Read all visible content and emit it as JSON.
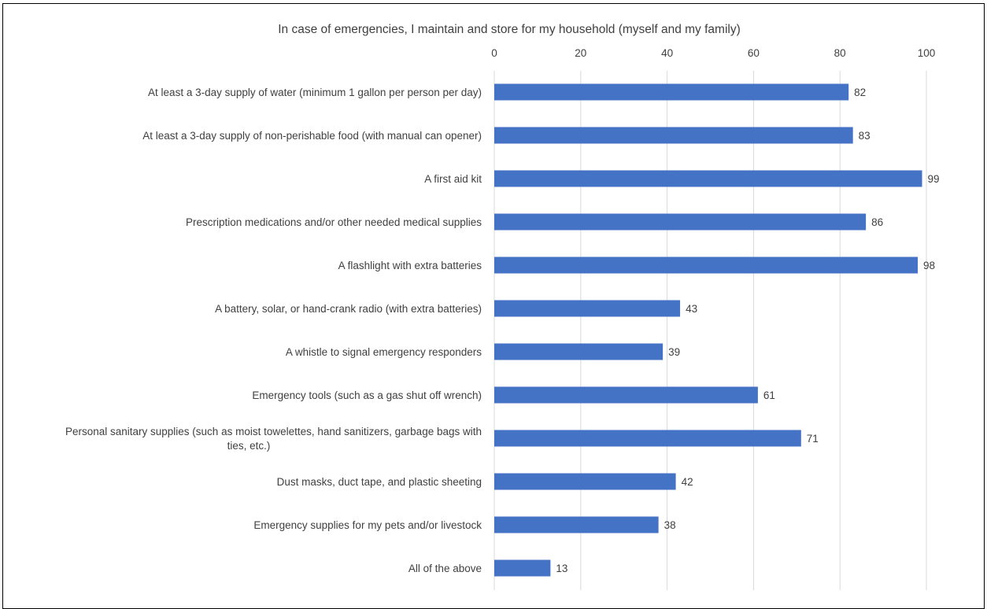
{
  "chart_data": {
    "type": "bar",
    "orientation": "horizontal",
    "title": "In case of emergencies, I maintain and store for my household (myself and my family)",
    "xlim": [
      0,
      100
    ],
    "x_ticks": [
      "0",
      "20",
      "40",
      "60",
      "80",
      "100"
    ],
    "x_axis_position": "top",
    "grid": true,
    "legend": "none",
    "bar_color": "#4472C4",
    "categories": [
      [
        "At least a 3-day supply of water (minimum 1 gallon per person per day)"
      ],
      [
        "At least a 3-day supply of non-perishable food (with manual can opener)"
      ],
      [
        "A first aid kit"
      ],
      [
        "Prescription medications and/or other needed medical supplies"
      ],
      [
        "A flashlight with extra batteries"
      ],
      [
        "A battery, solar, or hand-crank radio (with extra batteries)"
      ],
      [
        "A whistle to signal emergency responders"
      ],
      [
        "Emergency tools (such as a gas shut off wrench)"
      ],
      [
        "Personal sanitary supplies (such as moist towelettes, hand sanitizers, garbage bags with",
        "ties, etc.)"
      ],
      [
        "Dust masks, duct tape, and plastic sheeting"
      ],
      [
        "Emergency supplies for my pets and/or livestock"
      ],
      [
        "All of the above"
      ]
    ],
    "values": [
      82,
      83,
      99,
      86,
      98,
      43,
      39,
      61,
      71,
      42,
      38,
      13
    ],
    "data_labels": [
      "82",
      "83",
      "99",
      "86",
      "98",
      "43",
      "39",
      "61",
      "71",
      "42",
      "38",
      "13"
    ]
  }
}
